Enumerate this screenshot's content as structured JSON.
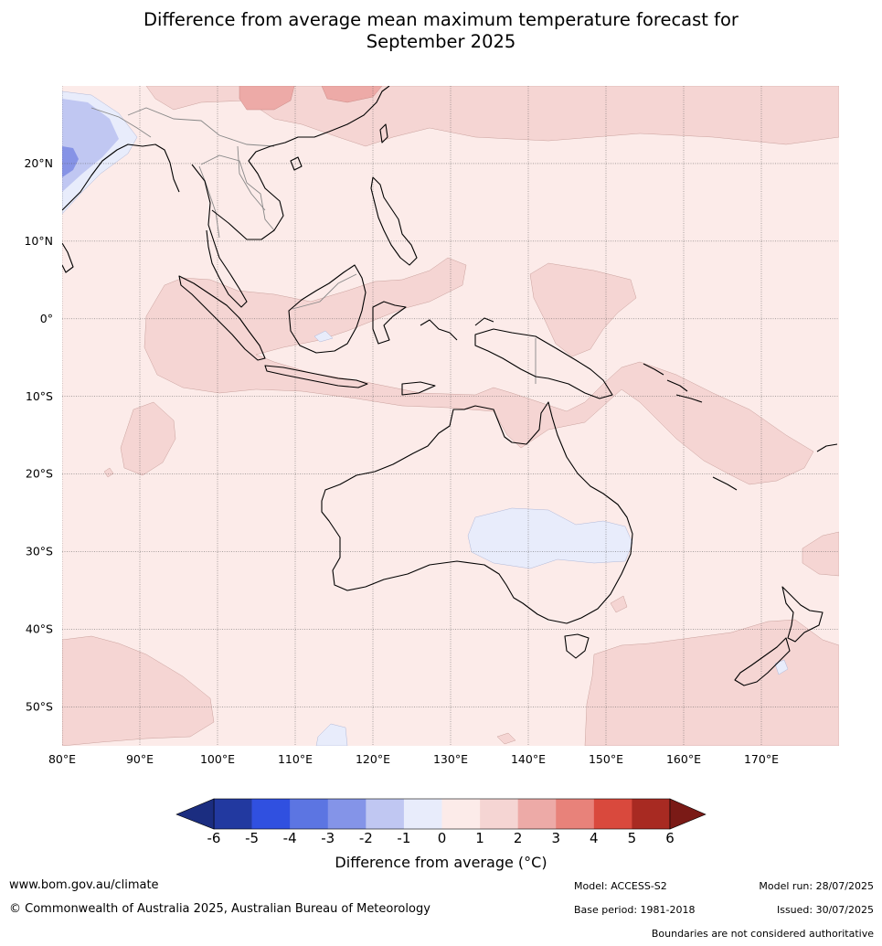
{
  "title": {
    "line1": "Difference from average mean maximum temperature forecast for",
    "line2": "September 2025"
  },
  "map": {
    "lon_range": [
      80,
      180
    ],
    "lat_range": [
      -55,
      30
    ],
    "lon_ticks": [
      80,
      90,
      100,
      110,
      120,
      130,
      140,
      150,
      160,
      170
    ],
    "lon_labels": [
      "80°E",
      "90°E",
      "100°E",
      "110°E",
      "120°E",
      "130°E",
      "140°E",
      "150°E",
      "160°E",
      "170°E"
    ],
    "lat_ticks": [
      20,
      10,
      0,
      -10,
      -20,
      -30,
      -40,
      -50
    ],
    "lat_labels": [
      "20°N",
      "10°N",
      "0°",
      "10°S",
      "20°S",
      "30°S",
      "40°S",
      "50°S"
    ],
    "grid": true,
    "background_category": "0 to 1",
    "colors": {
      "background": "#fcebe9",
      "warm_1_2": "#f5d5d3",
      "warm_2_3": "#edaaa7",
      "cool_0_m1": "#e8ecfb",
      "cool_m1_m2": "#c0c7f2",
      "cool_m2_m3": "#8693e6",
      "coast": "#000000",
      "border": "#888888",
      "grid": "#555555"
    }
  },
  "colorbar": {
    "ticks": [
      "-6",
      "-5",
      "-4",
      "-3",
      "-2",
      "-1",
      "0",
      "1",
      "2",
      "3",
      "4",
      "5",
      "6"
    ],
    "colors": [
      "#2239a0",
      "#3050e0",
      "#5c75e2",
      "#8494e8",
      "#c0c7f2",
      "#e8ecfb",
      "#fcebe9",
      "#f5d5d3",
      "#edaaa7",
      "#e8827a",
      "#d9493d",
      "#a82a22"
    ],
    "under_color": "#1b2d80",
    "over_color": "#7a1a16",
    "label": "Difference from average (°C)"
  },
  "footer": {
    "website": "www.bom.gov.au/climate",
    "copyright": "© Commonwealth of Australia 2025, Australian Bureau of Meteorology",
    "model": "Model: ACCESS-S2",
    "base_period": "Base period: 1981-2018",
    "model_run": "Model run: 28/07/2025",
    "issued": "Issued: 30/07/2025",
    "disclaimer": "Boundaries are not considered authoritative"
  }
}
